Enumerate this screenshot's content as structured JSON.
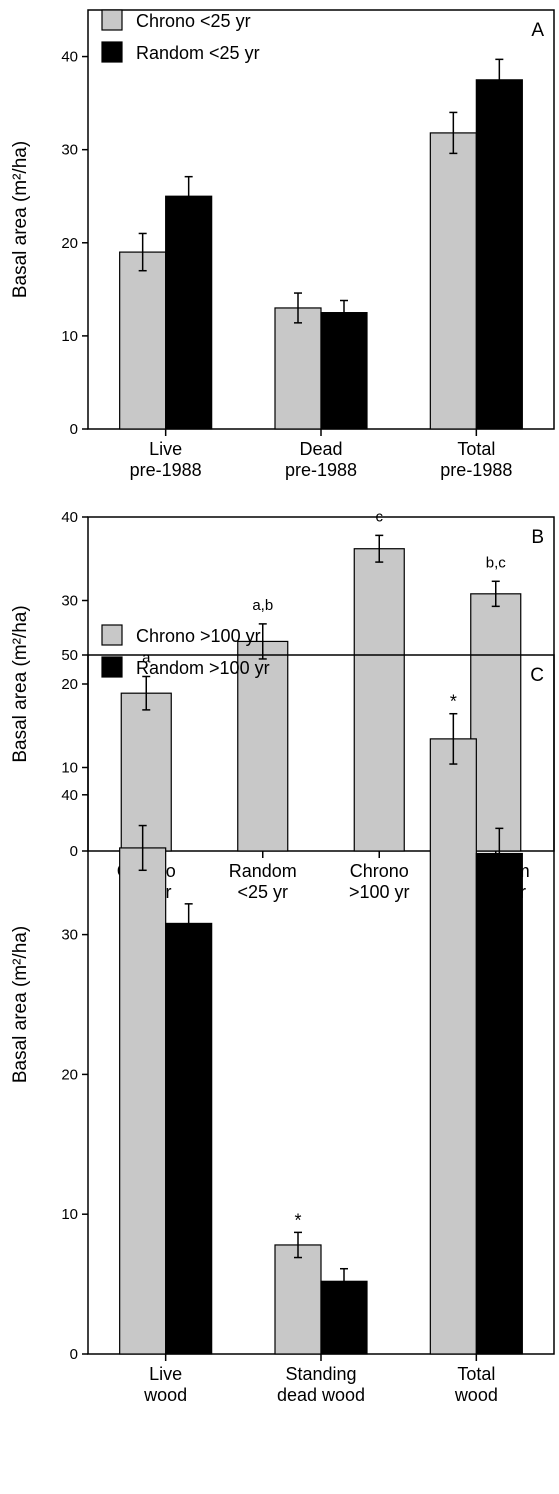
{
  "chart_data": [
    {
      "panel": "A",
      "type": "bar",
      "ylabel": "Basal area (m²/ha)",
      "ylim": [
        0,
        45
      ],
      "yticks": [
        0,
        10,
        20,
        30,
        40
      ],
      "categories": [
        [
          "Live",
          "pre-1988"
        ],
        [
          "Dead",
          "pre-1988"
        ],
        [
          "Total",
          "pre-1988"
        ]
      ],
      "legend_position": "top-left",
      "series": [
        {
          "name": "Chrono <25 yr",
          "color": "#c8c8c8",
          "values": [
            19.0,
            13.0,
            31.8
          ],
          "errors": [
            2.0,
            1.6,
            2.2
          ]
        },
        {
          "name": "Random <25 yr",
          "color": "#000000",
          "values": [
            25.0,
            12.5,
            37.5
          ],
          "errors": [
            2.1,
            1.3,
            2.2
          ]
        }
      ],
      "annotations": [
        [],
        [],
        []
      ]
    },
    {
      "panel": "B",
      "type": "bar",
      "ylabel": "Basal area (m²/ha)",
      "ylim": [
        0,
        40
      ],
      "yticks": [
        0,
        10,
        20,
        30,
        40
      ],
      "categories": [
        [
          "Chrono",
          "<25 yr"
        ],
        [
          "Random",
          "<25 yr"
        ],
        [
          "Chrono",
          ">100 yr"
        ],
        [
          "Random",
          ">100 yr"
        ]
      ],
      "legend_position": "none",
      "series": [
        {
          "name": "",
          "color": "#c8c8c8",
          "values": [
            18.9,
            25.1,
            36.2,
            30.8
          ],
          "errors": [
            2.0,
            2.1,
            1.6,
            1.5
          ]
        }
      ],
      "annotations": [
        [
          "a"
        ],
        [
          "a,b"
        ],
        [
          "c"
        ],
        [
          "b,c"
        ]
      ]
    },
    {
      "panel": "C",
      "type": "bar",
      "ylabel": "Basal area (m²/ha)",
      "ylim": [
        0,
        50
      ],
      "yticks": [
        0,
        10,
        20,
        30,
        40,
        50
      ],
      "categories": [
        [
          "Live",
          "wood"
        ],
        [
          "Standing",
          "dead wood"
        ],
        [
          "Total",
          "wood"
        ]
      ],
      "legend_position": "top-left",
      "series": [
        {
          "name": "Chrono >100 yr",
          "color": "#c8c8c8",
          "values": [
            36.2,
            7.8,
            44.0
          ],
          "errors": [
            1.6,
            0.9,
            1.8
          ]
        },
        {
          "name": "Random >100 yr",
          "color": "#000000",
          "values": [
            30.8,
            5.2,
            35.8
          ],
          "errors": [
            1.4,
            0.9,
            1.8
          ]
        }
      ],
      "annotations": [
        [],
        [
          "*"
        ],
        [
          "*"
        ]
      ]
    }
  ]
}
